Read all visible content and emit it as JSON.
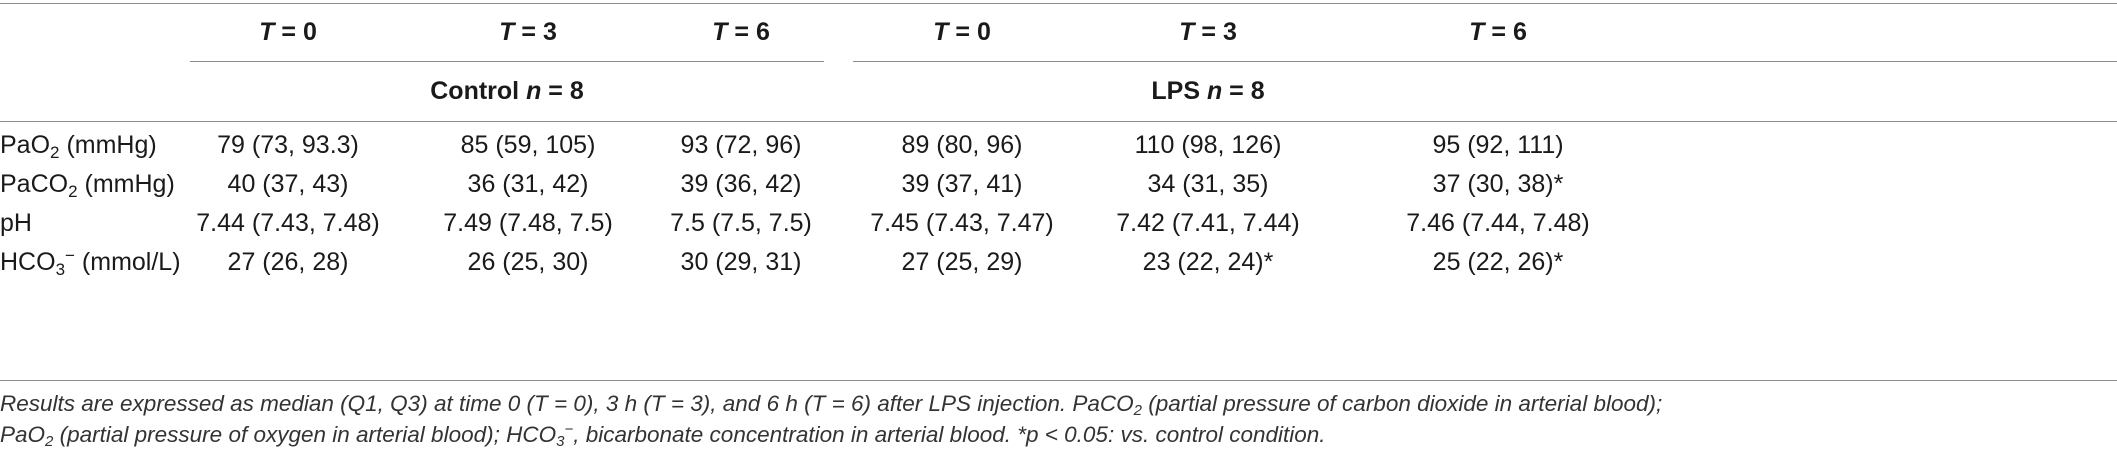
{
  "headers": {
    "time_var": "T",
    "time_points": [
      "0",
      "3",
      "6",
      "0",
      "3",
      "6"
    ],
    "groups": [
      {
        "name": "Control",
        "n_label": "n",
        "n_value": "8"
      },
      {
        "name": "LPS",
        "n_label": "n",
        "n_value": "8"
      }
    ]
  },
  "rows": [
    {
      "label": {
        "pre": "PaO",
        "sub": "2",
        "sup": "",
        "post": " (mmHg)"
      },
      "values": [
        "79 (73, 93.3)",
        "85 (59, 105)",
        "93 (72, 96)",
        "89 (80, 96)",
        "110 (98, 126)",
        "95 (92, 111)"
      ]
    },
    {
      "label": {
        "pre": "PaCO",
        "sub": "2",
        "sup": "",
        "post": " (mmHg)"
      },
      "values": [
        "40 (37, 43)",
        "36 (31, 42)",
        "39 (36, 42)",
        "39 (37, 41)",
        "34 (31, 35)",
        "37 (30, 38)*"
      ]
    },
    {
      "label": {
        "pre": "pH",
        "sub": "",
        "sup": "",
        "post": ""
      },
      "values": [
        "7.44 (7.43, 7.48)",
        "7.49 (7.48, 7.5)",
        "7.5 (7.5, 7.5)",
        "7.45 (7.43, 7.47)",
        "7.42 (7.41, 7.44)",
        "7.46 (7.44, 7.48)"
      ]
    },
    {
      "label": {
        "pre": "HCO",
        "sub": "3",
        "sup": "−",
        "post": " (mmol/L)"
      },
      "values": [
        "27 (26, 28)",
        "26 (25, 30)",
        "30 (29, 31)",
        "27 (25, 29)",
        "23 (22, 24)*",
        "25 (22, 26)*"
      ]
    }
  ],
  "footnote": {
    "line1_a": "Results are expressed as median (Q1, Q3) at time 0 (T = 0), 3 h (T = 3), and 6 h (T = 6) after LPS injection. PaCO",
    "line1_sub": "2",
    "line1_b": " (partial pressure of carbon dioxide in arterial blood);",
    "line2_a": "PaO",
    "line2_sub": "2",
    "line2_b": " (partial pressure of oxygen in arterial blood); HCO",
    "line2_sub2": "3",
    "line2_sup": "−",
    "line2_c": ", bicarbonate concentration in arterial blood. *p < 0.05: vs. control condition."
  }
}
